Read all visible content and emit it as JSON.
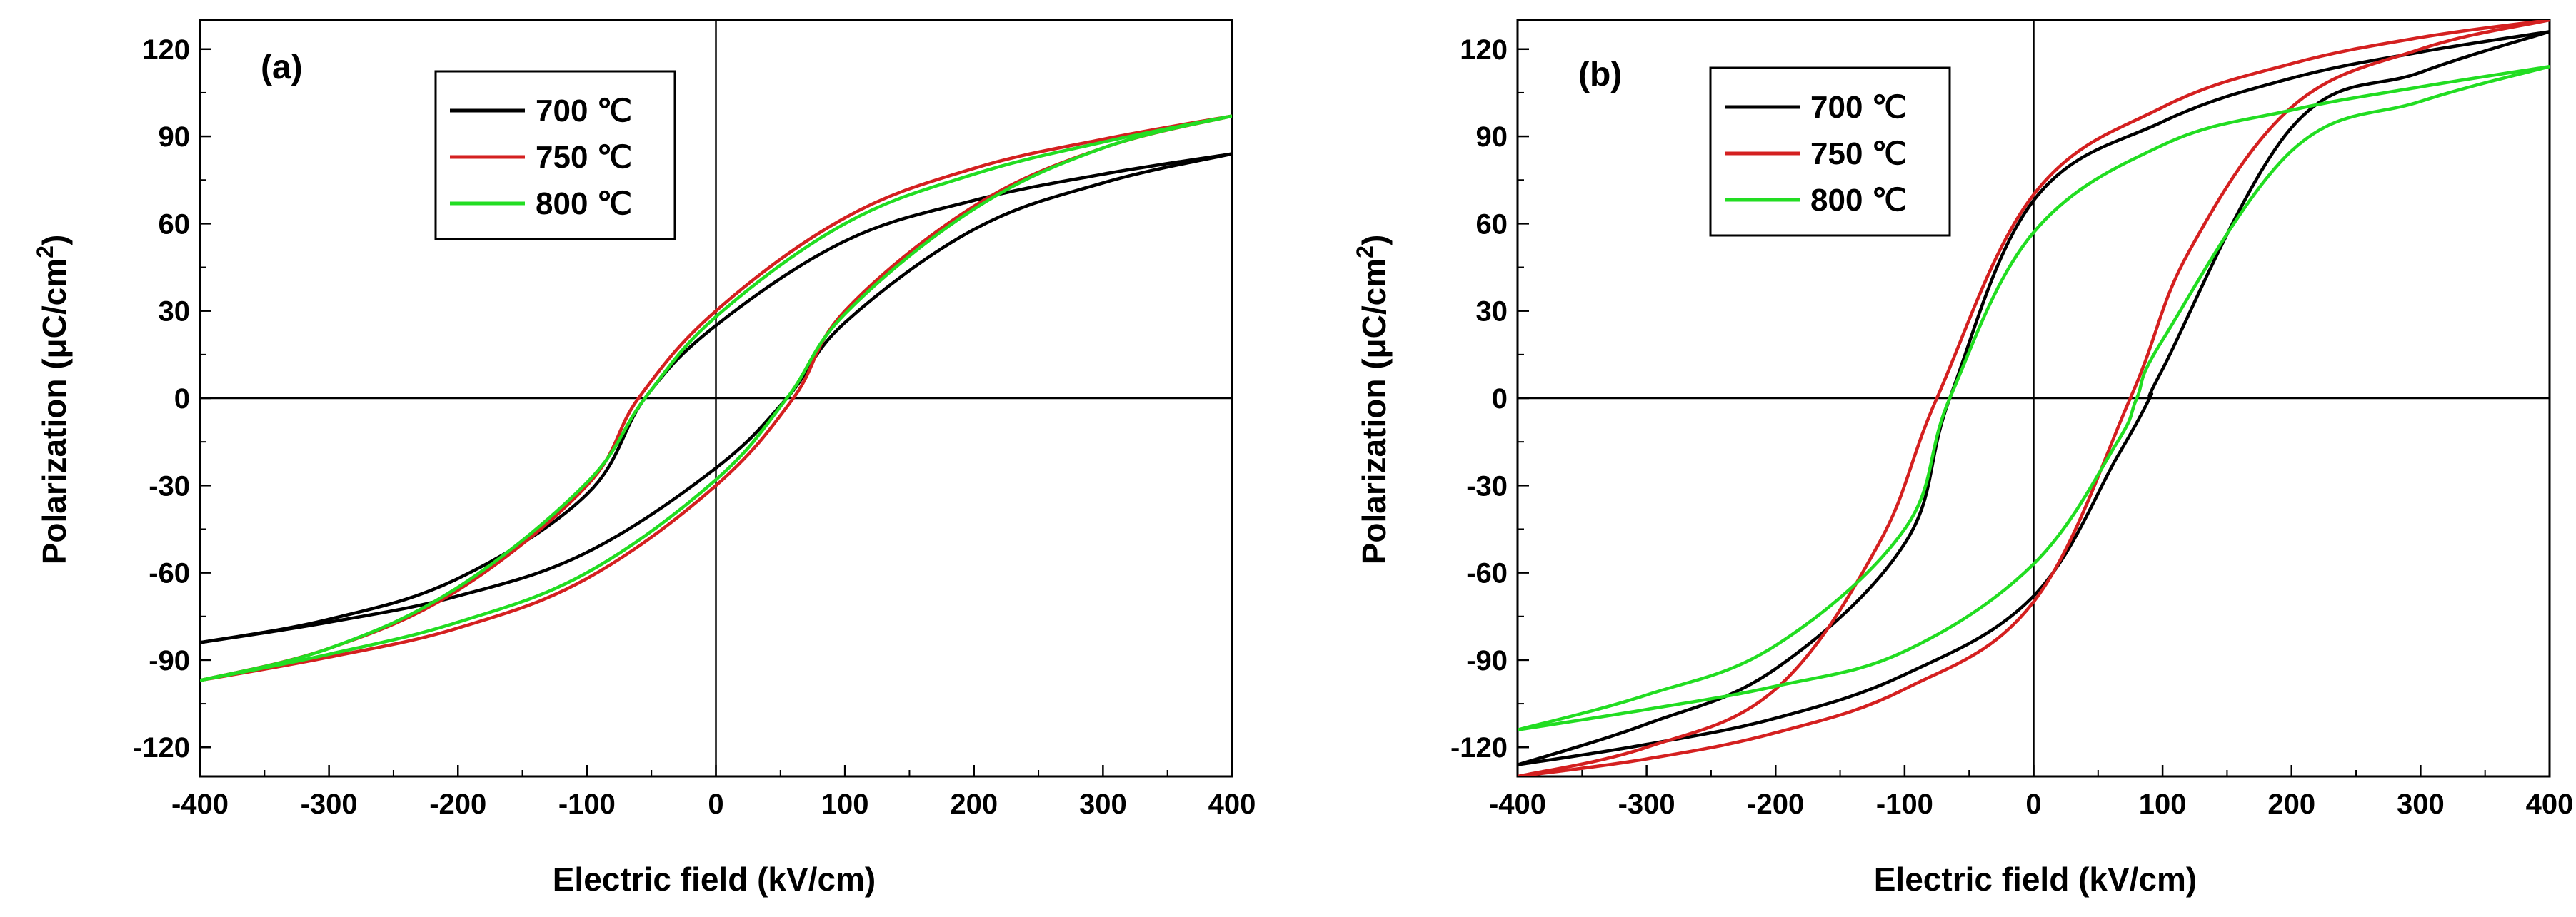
{
  "chart_data": [
    {
      "type": "line",
      "panel_label": "(a)",
      "title": "",
      "xlabel": "Electric field (kV/cm)",
      "ylabel": "Polarization (μC/cm",
      "ylabel_sup": "2",
      "ylabel_end": ")",
      "xlim": [
        -400,
        400
      ],
      "ylim": [
        -130,
        130
      ],
      "xticks": [
        -400,
        -300,
        -200,
        -100,
        0,
        100,
        200,
        300,
        400
      ],
      "yticks": [
        -120,
        -90,
        -60,
        -30,
        0,
        30,
        60,
        90,
        120
      ],
      "legend_position": "top-left",
      "series": [
        {
          "name": "700 ℃",
          "color": "#000000",
          "upper_branch": [
            [
              -400,
              -84
            ],
            [
              -300,
              -76
            ],
            [
              -200,
              -62
            ],
            [
              -100,
              -33
            ],
            [
              -55,
              0
            ],
            [
              0,
              25
            ],
            [
              100,
              54
            ],
            [
              200,
              68
            ],
            [
              300,
              77
            ],
            [
              400,
              84
            ]
          ],
          "lower_branch": [
            [
              -400,
              -84
            ],
            [
              -300,
              -77
            ],
            [
              -200,
              -68
            ],
            [
              -100,
              -53
            ],
            [
              0,
              -24
            ],
            [
              55,
              0
            ],
            [
              100,
              26
            ],
            [
              200,
              58
            ],
            [
              300,
              74
            ],
            [
              400,
              84
            ]
          ]
        },
        {
          "name": "750 ℃",
          "color": "#d42020",
          "upper_branch": [
            [
              -400,
              -97
            ],
            [
              -300,
              -86
            ],
            [
              -200,
              -66
            ],
            [
              -100,
              -30
            ],
            [
              -60,
              0
            ],
            [
              0,
              30
            ],
            [
              100,
              62
            ],
            [
              200,
              79
            ],
            [
              300,
              89
            ],
            [
              400,
              97
            ]
          ],
          "lower_branch": [
            [
              -400,
              -97
            ],
            [
              -300,
              -89
            ],
            [
              -200,
              -79
            ],
            [
              -100,
              -62
            ],
            [
              0,
              -30
            ],
            [
              60,
              0
            ],
            [
              100,
              30
            ],
            [
              200,
              66
            ],
            [
              300,
              86
            ],
            [
              400,
              97
            ]
          ]
        },
        {
          "name": "800 ℃",
          "color": "#22dd22",
          "upper_branch": [
            [
              -400,
              -97
            ],
            [
              -300,
              -86
            ],
            [
              -200,
              -65
            ],
            [
              -100,
              -29
            ],
            [
              -55,
              0
            ],
            [
              0,
              28
            ],
            [
              100,
              60
            ],
            [
              200,
              77
            ],
            [
              300,
              88
            ],
            [
              400,
              97
            ]
          ],
          "lower_branch": [
            [
              -400,
              -97
            ],
            [
              -300,
              -88
            ],
            [
              -200,
              -77
            ],
            [
              -100,
              -60
            ],
            [
              0,
              -28
            ],
            [
              55,
              0
            ],
            [
              100,
              29
            ],
            [
              200,
              65
            ],
            [
              300,
              86
            ],
            [
              400,
              97
            ]
          ]
        }
      ]
    },
    {
      "type": "line",
      "panel_label": "(b)",
      "title": "",
      "xlabel": "Electric field (kV/cm)",
      "ylabel": "Polarization (μC/cm",
      "ylabel_sup": "2",
      "ylabel_end": ")",
      "xlim": [
        -400,
        400
      ],
      "ylim": [
        -130,
        130
      ],
      "xticks": [
        -400,
        -300,
        -200,
        -100,
        0,
        100,
        200,
        300,
        400
      ],
      "yticks": [
        -120,
        -90,
        -60,
        -30,
        0,
        30,
        60,
        90,
        120
      ],
      "legend_position": "top-left",
      "series": [
        {
          "name": "700 ℃",
          "color": "#000000",
          "upper_branch": [
            [
              -400,
              -126
            ],
            [
              -300,
              -112
            ],
            [
              -200,
              -93
            ],
            [
              -100,
              -50
            ],
            [
              -65,
              0
            ],
            [
              0,
              68
            ],
            [
              100,
              95
            ],
            [
              200,
              110
            ],
            [
              300,
              119
            ],
            [
              400,
              126
            ]
          ],
          "lower_branch": [
            [
              -400,
              -126
            ],
            [
              -300,
              -119
            ],
            [
              -200,
              -110
            ],
            [
              -100,
              -95
            ],
            [
              0,
              -68
            ],
            [
              65,
              -20
            ],
            [
              90,
              0
            ],
            [
              100,
              10
            ],
            [
              200,
              93
            ],
            [
              300,
              112
            ],
            [
              400,
              126
            ]
          ]
        },
        {
          "name": "750 ℃",
          "color": "#d42020",
          "upper_branch": [
            [
              -400,
              -130
            ],
            [
              -300,
              -120
            ],
            [
              -200,
              -100
            ],
            [
              -120,
              -50
            ],
            [
              -75,
              0
            ],
            [
              0,
              70
            ],
            [
              100,
              100
            ],
            [
              200,
              115
            ],
            [
              300,
              124
            ],
            [
              400,
              130
            ]
          ],
          "lower_branch": [
            [
              -400,
              -130
            ],
            [
              -300,
              -124
            ],
            [
              -200,
              -115
            ],
            [
              -100,
              -100
            ],
            [
              0,
              -70
            ],
            [
              75,
              0
            ],
            [
              120,
              50
            ],
            [
              200,
              100
            ],
            [
              300,
              120
            ],
            [
              400,
              130
            ]
          ]
        },
        {
          "name": "800 ℃",
          "color": "#22dd22",
          "upper_branch": [
            [
              -400,
              -114
            ],
            [
              -300,
              -102
            ],
            [
              -200,
              -85
            ],
            [
              -100,
              -45
            ],
            [
              -65,
              0
            ],
            [
              0,
              57
            ],
            [
              100,
              87
            ],
            [
              200,
              99
            ],
            [
              300,
              107
            ],
            [
              400,
              114
            ]
          ],
          "lower_branch": [
            [
              -400,
              -114
            ],
            [
              -300,
              -107
            ],
            [
              -200,
              -99
            ],
            [
              -100,
              -87
            ],
            [
              0,
              -57
            ],
            [
              65,
              -15
            ],
            [
              80,
              0
            ],
            [
              100,
              20
            ],
            [
              200,
              85
            ],
            [
              300,
              102
            ],
            [
              400,
              114
            ]
          ]
        }
      ]
    }
  ]
}
